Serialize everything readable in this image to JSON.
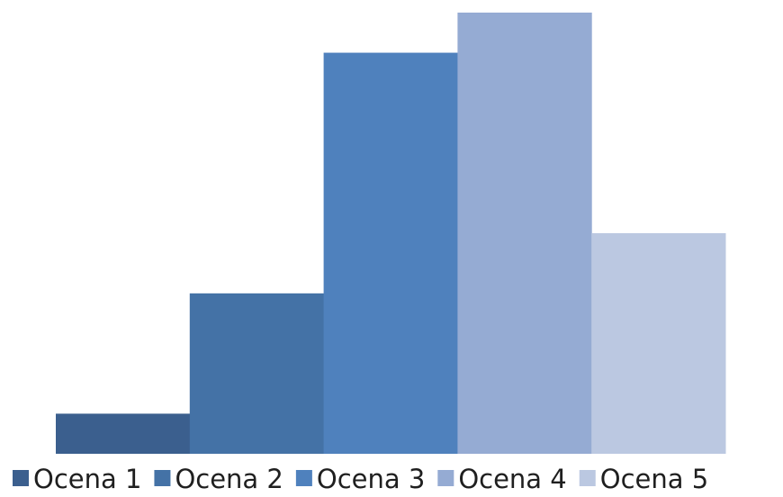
{
  "chart_data": {
    "type": "bar",
    "title": "",
    "xlabel": "",
    "ylabel": "",
    "grid": false,
    "legend_position": "bottom",
    "ylim": [
      0,
      11
    ],
    "series": [
      {
        "name": "Ocena 1",
        "value": 1,
        "color": "#3b5f8e"
      },
      {
        "name": "Ocena 2",
        "value": 4,
        "color": "#4472a6"
      },
      {
        "name": "Ocena 3",
        "value": 10,
        "color": "#4f81bd"
      },
      {
        "name": "Ocena 4",
        "value": 11,
        "color": "#95abd3"
      },
      {
        "name": "Ocena 5",
        "value": 5.5,
        "color": "#bbc8e1"
      }
    ]
  }
}
